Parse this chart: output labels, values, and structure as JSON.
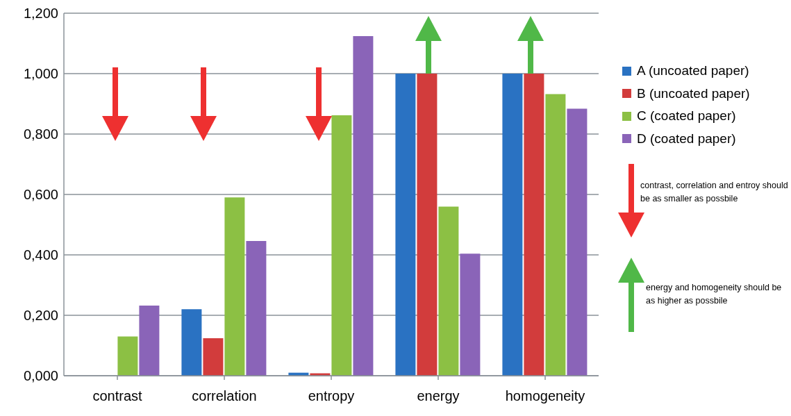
{
  "chart_data": {
    "type": "bar",
    "categories": [
      "contrast",
      "correlation",
      "entropy",
      "energy",
      "homogeneity"
    ],
    "series": [
      {
        "name": "A (uncoated paper)",
        "color": "#2a72c2",
        "values": [
          0,
          0.22,
          0.01,
          1.0,
          1.0
        ]
      },
      {
        "name": "B (uncoated paper)",
        "color": "#d23c3c",
        "values": [
          0,
          0.124,
          0.008,
          1.0,
          1.0
        ]
      },
      {
        "name": "C (coated paper)",
        "color": "#8cc044",
        "values": [
          0.13,
          0.59,
          0.862,
          0.56,
          0.932
        ]
      },
      {
        "name": "D (coated paper)",
        "color": "#8a64b8",
        "values": [
          0.232,
          0.446,
          1.124,
          0.404,
          0.884
        ]
      }
    ],
    "ylim": [
      0,
      1.2
    ],
    "yticks": [
      {
        "value": 0,
        "label": "0,000"
      },
      {
        "value": 0.2,
        "label": "0,200"
      },
      {
        "value": 0.4,
        "label": "0,400"
      },
      {
        "value": 0.6,
        "label": "0,600"
      },
      {
        "value": 0.8,
        "label": "0,800"
      },
      {
        "value": 1.0,
        "label": "1,000"
      },
      {
        "value": 1.2,
        "label": "1,200"
      }
    ],
    "grid": "y",
    "legend": "right",
    "annotations": [
      "contrast, correlation and entroy should be as smaller as possbile",
      "energy and homogeneity should be as higher as possbile"
    ]
  }
}
